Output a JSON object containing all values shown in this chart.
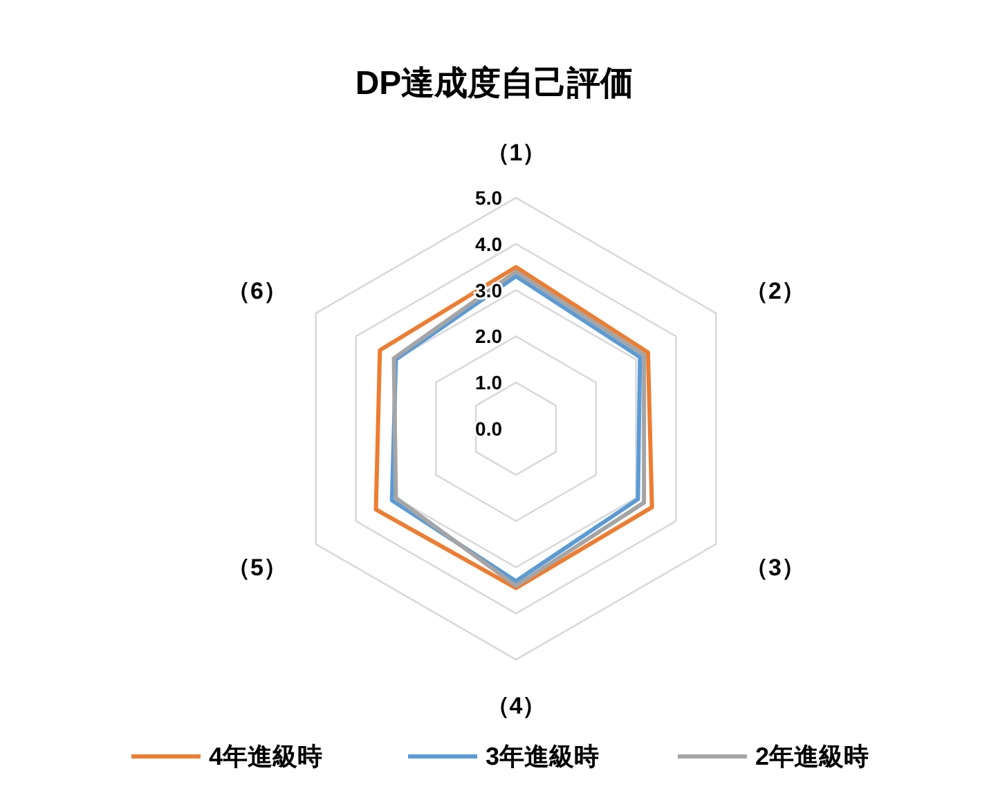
{
  "chart_data": {
    "type": "radar",
    "title": "DP達成度自己評価",
    "categories": [
      "（1）",
      "（2）",
      "（3）",
      "（4）",
      "（5）",
      "（6）"
    ],
    "series": [
      {
        "name": "4年進級時",
        "color": "#ed7d31",
        "values": [
          3.5,
          3.3,
          3.4,
          3.45,
          3.5,
          3.4
        ]
      },
      {
        "name": "3年進級時",
        "color": "#5b9bd5",
        "values": [
          3.3,
          3.1,
          3.05,
          3.3,
          3.1,
          3.0
        ]
      },
      {
        "name": "2年進級時",
        "color": "#a5a5a5",
        "values": [
          3.4,
          3.2,
          3.2,
          3.4,
          3.0,
          3.05
        ]
      }
    ],
    "ylim": [
      0,
      5
    ],
    "yticks": [
      {
        "value": 0,
        "label": "0.0"
      },
      {
        "value": 1,
        "label": "1.0"
      },
      {
        "value": 2,
        "label": "2.0"
      },
      {
        "value": 3,
        "label": "3.0"
      },
      {
        "value": 4,
        "label": "4.0"
      },
      {
        "value": 5,
        "label": "5.0"
      }
    ],
    "grid": true,
    "legend": "bottom",
    "marker": "none",
    "line_style": "solid"
  }
}
